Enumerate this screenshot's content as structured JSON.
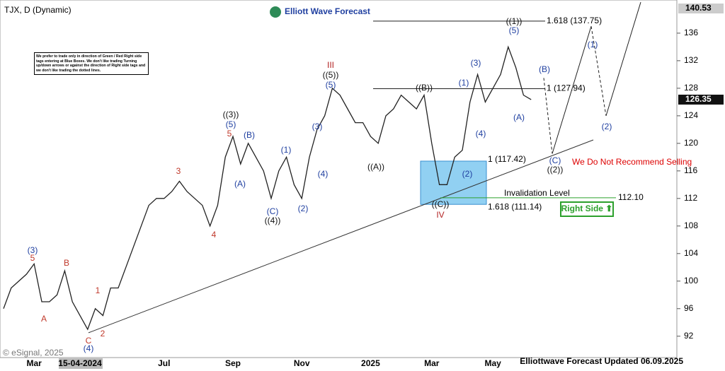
{
  "chart_data": {
    "type": "line",
    "title": "TJX, D (Dynamic)",
    "brand": "Elliott Wave Forecast",
    "disclaimer": "We prefer to trade only in direction of Green / Red Right side tags entering at Blue Boxes. We don't like trading Turning up/down arrows or against the direction of Right side tags and we don't like trading the dotted lines.",
    "footer": "Elliottwave Forecast Updated 06.09.2025",
    "copyright": "© eSignal, 2025",
    "categories": [
      null,
      null,
      null,
      null,
      "Mar",
      null,
      null,
      null,
      null,
      null,
      "15-04-2024",
      null,
      null,
      null,
      null,
      null,
      null,
      null,
      null,
      null,
      null,
      "Jul",
      null,
      null,
      null,
      null,
      null,
      null,
      null,
      null,
      "Sep",
      null,
      null,
      null,
      null,
      null,
      null,
      null,
      null,
      "Nov",
      null,
      null,
      null,
      null,
      null,
      null,
      null,
      null,
      "2025",
      null,
      null,
      null,
      null,
      null,
      null,
      null,
      "Mar",
      null,
      null,
      null,
      null,
      null,
      null,
      null,
      "May",
      null,
      null,
      null,
      null,
      null
    ],
    "series": [
      {
        "name": "TJX",
        "color": "#222222",
        "values": [
          96,
          99,
          100,
          101,
          102.5,
          97,
          97,
          98,
          101.5,
          97,
          95,
          93,
          96,
          95,
          99,
          99,
          102,
          105,
          108,
          111,
          112,
          112,
          113,
          114.5,
          113,
          112,
          111,
          108,
          111,
          118,
          121,
          117,
          120,
          118,
          116,
          112,
          116,
          118,
          114,
          112,
          118,
          122,
          124,
          128,
          127,
          125,
          123,
          123,
          121,
          120,
          124,
          125,
          127,
          126,
          125,
          127,
          120,
          114,
          114,
          118,
          119,
          126,
          130,
          126,
          128,
          130,
          134,
          131,
          127,
          126.35
        ]
      }
    ],
    "projection": [
      129.5,
      118.5,
      137,
      124,
      140.5
    ],
    "trendline": [
      92.5,
      120.5
    ],
    "ylim": [
      89,
      140.3
    ],
    "yticks": [
      92,
      96,
      100,
      104,
      108,
      112,
      116,
      120,
      124,
      128,
      132,
      136
    ],
    "price_labels": [
      140.53,
      126.35
    ],
    "levels": [
      {
        "label": "1.618 (137.75)",
        "value": 137.75
      },
      {
        "label": "1 (127.94)",
        "value": 127.94
      },
      {
        "label": "1 (117.42)",
        "value": 117.42
      },
      {
        "label": "1.618 (111.14)",
        "value": 111.14
      }
    ],
    "invalidation": {
      "label": "Invalidation Level",
      "value": 112.1,
      "value_label": "112.10"
    },
    "warning": "We Do Not Recommend Selling",
    "right_side": "Right Side ⬆",
    "annotations": [
      {
        "text": "(3)",
        "color": "#1f3fa0"
      },
      {
        "text": "5",
        "color": "#c0392b"
      },
      {
        "text": "B",
        "color": "#c0392b"
      },
      {
        "text": "A",
        "color": "#c0392b"
      },
      {
        "text": "1",
        "color": "#c0392b"
      },
      {
        "text": "2",
        "color": "#c0392b"
      },
      {
        "text": "C",
        "color": "#c0392b"
      },
      {
        "text": "(4)",
        "color": "#1f3fa0"
      },
      {
        "text": "3",
        "color": "#c0392b"
      },
      {
        "text": "4",
        "color": "#c0392b"
      },
      {
        "text": "((3))",
        "color": "#111111"
      },
      {
        "text": "(5)",
        "color": "#1f3fa0"
      },
      {
        "text": "5",
        "color": "#c0392b"
      },
      {
        "text": "(B)",
        "color": "#1f3fa0"
      },
      {
        "text": "(A)",
        "color": "#1f3fa0"
      },
      {
        "text": "(C)",
        "color": "#1f3fa0"
      },
      {
        "text": "((4))",
        "color": "#111111"
      },
      {
        "text": "(1)",
        "color": "#1f3fa0"
      },
      {
        "text": "(2)",
        "color": "#1f3fa0"
      },
      {
        "text": "III",
        "color": "#b22222"
      },
      {
        "text": "((5))",
        "color": "#111111"
      },
      {
        "text": "(5)",
        "color": "#1f3fa0"
      },
      {
        "text": "(3)",
        "color": "#1f3fa0"
      },
      {
        "text": "(4)",
        "color": "#1f3fa0"
      },
      {
        "text": "((A))",
        "color": "#111111"
      },
      {
        "text": "((B))",
        "color": "#111111"
      },
      {
        "text": "(1)",
        "color": "#1f3fa0"
      },
      {
        "text": "(3)",
        "color": "#1f3fa0"
      },
      {
        "text": "(4)",
        "color": "#1f3fa0"
      },
      {
        "text": "(2)",
        "color": "#1f3fa0"
      },
      {
        "text": "((C))",
        "color": "#111111"
      },
      {
        "text": "IV",
        "color": "#b22222"
      },
      {
        "text": "((1))",
        "color": "#111111"
      },
      {
        "text": "(5)",
        "color": "#1f3fa0"
      },
      {
        "text": "(B)",
        "color": "#1f3fa0"
      },
      {
        "text": "(A)",
        "color": "#1f3fa0"
      },
      {
        "text": "(C)",
        "color": "#1f3fa0"
      },
      {
        "text": "((2))",
        "color": "#111111"
      },
      {
        "text": "(1)",
        "color": "#1f3fa0"
      },
      {
        "text": "(2)",
        "color": "#1f3fa0"
      }
    ]
  }
}
